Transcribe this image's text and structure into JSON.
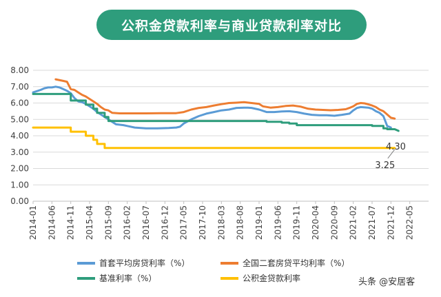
{
  "chart_data": {
    "type": "line",
    "title": "公积金贷款利率与商业贷款利率对比",
    "ylim": [
      0,
      8
    ],
    "yticks": [
      "0.00",
      "1.00",
      "2.00",
      "3.00",
      "4.00",
      "5.00",
      "6.00",
      "7.00",
      "8.00"
    ],
    "xticks": [
      "2014-01",
      "2014-06",
      "2014-11",
      "2015-04",
      "2015-09",
      "2016-02",
      "2016-07",
      "2016-12",
      "2017-05",
      "2017-10",
      "2018-03",
      "2018-08",
      "2019-01",
      "2019-06",
      "2019-11",
      "2020-04",
      "2020-09",
      "2021-02",
      "2021-07",
      "2021-12",
      "2022-05"
    ],
    "x_range_months": [
      0,
      105
    ],
    "grid": "horizontal",
    "legend_placement": "bottom",
    "series": [
      {
        "name": "首套平均房贷利率（%）",
        "color": "#5b9bd5",
        "points": [
          [
            0,
            6.65
          ],
          [
            2,
            6.8
          ],
          [
            3,
            6.9
          ],
          [
            4,
            6.95
          ],
          [
            5,
            6.95
          ],
          [
            6,
            7.0
          ],
          [
            7,
            6.95
          ],
          [
            8,
            6.85
          ],
          [
            9,
            6.75
          ],
          [
            10,
            6.6
          ],
          [
            11,
            6.3
          ],
          [
            12,
            6.1
          ],
          [
            13,
            6.05
          ],
          [
            14,
            5.95
          ],
          [
            15,
            5.8
          ],
          [
            16,
            5.65
          ],
          [
            17,
            5.45
          ],
          [
            18,
            5.3
          ],
          [
            19,
            5.15
          ],
          [
            20,
            5.0
          ],
          [
            21,
            4.85
          ],
          [
            22,
            4.7
          ],
          [
            24,
            4.65
          ],
          [
            25,
            4.6
          ],
          [
            27,
            4.5
          ],
          [
            30,
            4.45
          ],
          [
            33,
            4.45
          ],
          [
            36,
            4.47
          ],
          [
            38,
            4.5
          ],
          [
            39,
            4.55
          ],
          [
            40,
            4.75
          ],
          [
            42,
            5.0
          ],
          [
            44,
            5.2
          ],
          [
            46,
            5.35
          ],
          [
            48,
            5.45
          ],
          [
            50,
            5.55
          ],
          [
            52,
            5.6
          ],
          [
            54,
            5.7
          ],
          [
            56,
            5.72
          ],
          [
            57,
            5.72
          ],
          [
            58,
            5.7
          ],
          [
            60,
            5.6
          ],
          [
            62,
            5.45
          ],
          [
            64,
            5.45
          ],
          [
            66,
            5.48
          ],
          [
            68,
            5.5
          ],
          [
            70,
            5.45
          ],
          [
            72,
            5.35
          ],
          [
            74,
            5.28
          ],
          [
            76,
            5.25
          ],
          [
            78,
            5.25
          ],
          [
            80,
            5.22
          ],
          [
            82,
            5.28
          ],
          [
            84,
            5.35
          ],
          [
            85,
            5.55
          ],
          [
            86,
            5.7
          ],
          [
            87,
            5.75
          ],
          [
            89,
            5.72
          ],
          [
            90,
            5.65
          ],
          [
            91,
            5.5
          ],
          [
            92,
            5.4
          ],
          [
            93,
            5.2
          ],
          [
            94,
            4.6
          ],
          [
            95,
            4.5
          ]
        ]
      },
      {
        "name": "全国二套房贷平均利率（%）",
        "color": "#ed7d31",
        "points": [
          [
            6,
            7.45
          ],
          [
            8,
            7.35
          ],
          [
            9,
            7.3
          ],
          [
            10,
            6.85
          ],
          [
            11,
            6.8
          ],
          [
            12,
            6.65
          ],
          [
            13,
            6.5
          ],
          [
            14,
            6.4
          ],
          [
            15,
            6.25
          ],
          [
            16,
            6.1
          ],
          [
            17,
            5.95
          ],
          [
            18,
            5.75
          ],
          [
            19,
            5.6
          ],
          [
            20,
            5.55
          ],
          [
            21,
            5.4
          ],
          [
            23,
            5.37
          ],
          [
            26,
            5.37
          ],
          [
            30,
            5.37
          ],
          [
            34,
            5.38
          ],
          [
            38,
            5.38
          ],
          [
            40,
            5.45
          ],
          [
            42,
            5.6
          ],
          [
            44,
            5.7
          ],
          [
            46,
            5.75
          ],
          [
            48,
            5.85
          ],
          [
            50,
            5.93
          ],
          [
            52,
            6.0
          ],
          [
            54,
            6.02
          ],
          [
            56,
            6.05
          ],
          [
            58,
            6.0
          ],
          [
            60,
            5.95
          ],
          [
            61,
            5.8
          ],
          [
            63,
            5.72
          ],
          [
            65,
            5.75
          ],
          [
            67,
            5.82
          ],
          [
            69,
            5.85
          ],
          [
            71,
            5.78
          ],
          [
            73,
            5.65
          ],
          [
            75,
            5.6
          ],
          [
            77,
            5.58
          ],
          [
            79,
            5.56
          ],
          [
            81,
            5.58
          ],
          [
            83,
            5.62
          ],
          [
            84,
            5.7
          ],
          [
            85,
            5.8
          ],
          [
            86,
            5.95
          ],
          [
            87,
            6.0
          ],
          [
            88,
            5.98
          ],
          [
            89,
            5.92
          ],
          [
            90,
            5.85
          ],
          [
            91,
            5.75
          ],
          [
            92,
            5.6
          ],
          [
            93,
            5.5
          ],
          [
            94,
            5.3
          ],
          [
            95,
            5.1
          ],
          [
            96,
            5.05
          ]
        ]
      },
      {
        "name": "基准利率（%）",
        "color": "#2e9d7c",
        "points": [
          [
            0,
            6.55
          ],
          [
            10,
            6.55
          ],
          [
            10.01,
            6.15
          ],
          [
            14,
            6.15
          ],
          [
            14.01,
            5.9
          ],
          [
            16,
            5.9
          ],
          [
            16.01,
            5.65
          ],
          [
            17,
            5.65
          ],
          [
            17.01,
            5.4
          ],
          [
            19,
            5.4
          ],
          [
            19.01,
            5.15
          ],
          [
            20,
            5.15
          ],
          [
            20.01,
            4.9
          ],
          [
            62,
            4.9
          ],
          [
            62.01,
            4.85
          ],
          [
            66,
            4.85
          ],
          [
            66.01,
            4.8
          ],
          [
            68,
            4.8
          ],
          [
            68.01,
            4.75
          ],
          [
            70,
            4.75
          ],
          [
            70.01,
            4.65
          ],
          [
            90,
            4.65
          ],
          [
            90.01,
            4.6
          ],
          [
            93,
            4.6
          ],
          [
            93.01,
            4.45
          ],
          [
            94,
            4.45
          ],
          [
            94.01,
            4.4
          ],
          [
            96,
            4.4
          ],
          [
            97,
            4.3
          ]
        ]
      },
      {
        "name": "公积金贷款利率",
        "color": "#ffc000",
        "points": [
          [
            0,
            4.5
          ],
          [
            10,
            4.5
          ],
          [
            10.01,
            4.25
          ],
          [
            14,
            4.25
          ],
          [
            14.01,
            4.0
          ],
          [
            16,
            4.0
          ],
          [
            16.01,
            3.75
          ],
          [
            17,
            3.75
          ],
          [
            17.01,
            3.5
          ],
          [
            19,
            3.5
          ],
          [
            19.01,
            3.25
          ],
          [
            96,
            3.25
          ]
        ]
      }
    ],
    "annotations": [
      "4.30",
      "3.25"
    ]
  },
  "watermark": "头条 @安居客"
}
